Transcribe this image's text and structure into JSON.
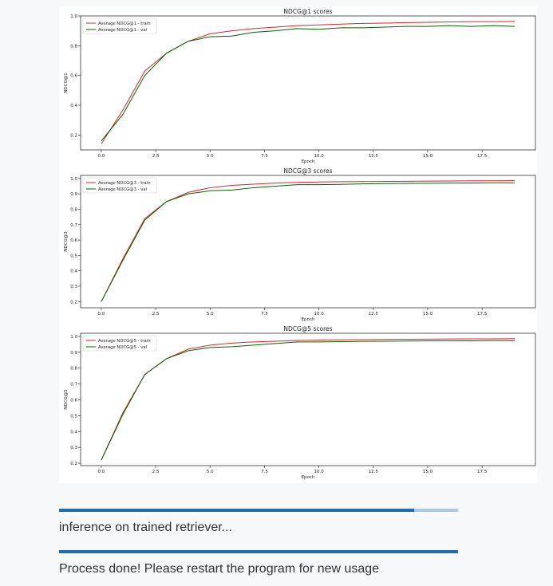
{
  "chart_data": [
    {
      "type": "line",
      "title": "NDCG@1 scores",
      "xlabel": "Epoch",
      "ylabel": "NDCG@1",
      "x": [
        0,
        1,
        2,
        3,
        4,
        5,
        6,
        7,
        8,
        9,
        10,
        11,
        12,
        13,
        14,
        15,
        16,
        17,
        18,
        19
      ],
      "xlim": [
        -0.95,
        19.95
      ],
      "ylim": [
        0.1,
        1.0
      ],
      "xticks": [
        0.0,
        2.5,
        5.0,
        7.5,
        10.0,
        12.5,
        15.0,
        17.5
      ],
      "xtick_labels": [
        "0.0",
        "2.5",
        "5.0",
        "7.5",
        "10.0",
        "12.5",
        "15.0",
        "17.5"
      ],
      "yticks": [
        0.2,
        0.4,
        0.6,
        0.8,
        1.0
      ],
      "ytick_labels": [
        "0.2",
        "0.4",
        "0.6",
        "0.8",
        "1.0"
      ],
      "legend_loc": "upper-left",
      "grid": false,
      "series": [
        {
          "name": "Average NDCG@1 - train",
          "color": "#d62728",
          "values": [
            0.14,
            0.37,
            0.63,
            0.75,
            0.83,
            0.88,
            0.9,
            0.915,
            0.925,
            0.935,
            0.94,
            0.945,
            0.95,
            0.952,
            0.955,
            0.957,
            0.96,
            0.962,
            0.962,
            0.963
          ]
        },
        {
          "name": "Average NDCG@1 - val",
          "color": "#006400",
          "values": [
            0.16,
            0.34,
            0.6,
            0.75,
            0.83,
            0.86,
            0.865,
            0.89,
            0.9,
            0.915,
            0.91,
            0.92,
            0.92,
            0.925,
            0.93,
            0.93,
            0.935,
            0.93,
            0.935,
            0.93
          ]
        }
      ]
    },
    {
      "type": "line",
      "title": "NDCG@3 scores",
      "xlabel": "Epoch",
      "ylabel": "NDCG@3",
      "x": [
        0,
        1,
        2,
        3,
        4,
        5,
        6,
        7,
        8,
        9,
        10,
        11,
        12,
        13,
        14,
        15,
        16,
        17,
        18,
        19
      ],
      "xlim": [
        -0.95,
        19.95
      ],
      "ylim": [
        0.16,
        1.02
      ],
      "xticks": [
        0.0,
        2.5,
        5.0,
        7.5,
        10.0,
        12.5,
        15.0,
        17.5
      ],
      "xtick_labels": [
        "0.0",
        "2.5",
        "5.0",
        "7.5",
        "10.0",
        "12.5",
        "15.0",
        "17.5"
      ],
      "yticks": [
        0.2,
        0.3,
        0.4,
        0.5,
        0.6,
        0.7,
        0.8,
        0.9,
        1.0
      ],
      "ytick_labels": [
        "0.2",
        "0.3",
        "0.4",
        "0.5",
        "0.6",
        "0.7",
        "0.8",
        "0.9",
        "1.0"
      ],
      "legend_loc": "upper-left",
      "grid": false,
      "series": [
        {
          "name": "Average NDCG@3 - train",
          "color": "#d62728",
          "values": [
            0.2,
            0.48,
            0.74,
            0.85,
            0.91,
            0.94,
            0.955,
            0.963,
            0.97,
            0.975,
            0.977,
            0.979,
            0.98,
            0.981,
            0.982,
            0.983,
            0.984,
            0.985,
            0.985,
            0.986
          ]
        },
        {
          "name": "Average NDCG@3 - val",
          "color": "#006400",
          "values": [
            0.2,
            0.47,
            0.73,
            0.85,
            0.9,
            0.92,
            0.925,
            0.94,
            0.95,
            0.96,
            0.96,
            0.962,
            0.965,
            0.967,
            0.968,
            0.969,
            0.97,
            0.97,
            0.972,
            0.972
          ]
        }
      ]
    },
    {
      "type": "line",
      "title": "NDCG@5 scores",
      "xlabel": "Epoch",
      "ylabel": "NDCG@5",
      "x": [
        0,
        1,
        2,
        3,
        4,
        5,
        6,
        7,
        8,
        9,
        10,
        11,
        12,
        13,
        14,
        15,
        16,
        17,
        18,
        19
      ],
      "xlim": [
        -0.95,
        19.95
      ],
      "ylim": [
        0.185,
        1.02
      ],
      "xticks": [
        0.0,
        2.5,
        5.0,
        7.5,
        10.0,
        12.5,
        15.0,
        17.5
      ],
      "xtick_labels": [
        "0.0",
        "2.5",
        "5.0",
        "7.5",
        "10.0",
        "12.5",
        "15.0",
        "17.5"
      ],
      "yticks": [
        0.2,
        0.3,
        0.4,
        0.5,
        0.6,
        0.7,
        0.8,
        0.9,
        1.0
      ],
      "ytick_labels": [
        "0.2",
        "0.3",
        "0.4",
        "0.5",
        "0.6",
        "0.7",
        "0.8",
        "0.9",
        "1.0"
      ],
      "legend_loc": "upper-left",
      "grid": false,
      "series": [
        {
          "name": "Average NDCG@5 - train",
          "color": "#d62728",
          "values": [
            0.22,
            0.52,
            0.76,
            0.86,
            0.92,
            0.945,
            0.958,
            0.965,
            0.97,
            0.975,
            0.977,
            0.979,
            0.98,
            0.981,
            0.982,
            0.983,
            0.984,
            0.985,
            0.985,
            0.986
          ]
        },
        {
          "name": "Average NDCG@5 - val",
          "color": "#006400",
          "values": [
            0.22,
            0.51,
            0.76,
            0.86,
            0.91,
            0.93,
            0.935,
            0.945,
            0.955,
            0.965,
            0.965,
            0.967,
            0.969,
            0.97,
            0.971,
            0.972,
            0.973,
            0.972,
            0.974,
            0.973
          ]
        }
      ]
    }
  ],
  "progress_bars": [
    {
      "fill_fraction": 0.89
    },
    {
      "fill_fraction": 1.0
    }
  ],
  "status": {
    "inference_text": "inference on trained retriever...",
    "done_text": "Process done! Please restart the program for new usage"
  }
}
